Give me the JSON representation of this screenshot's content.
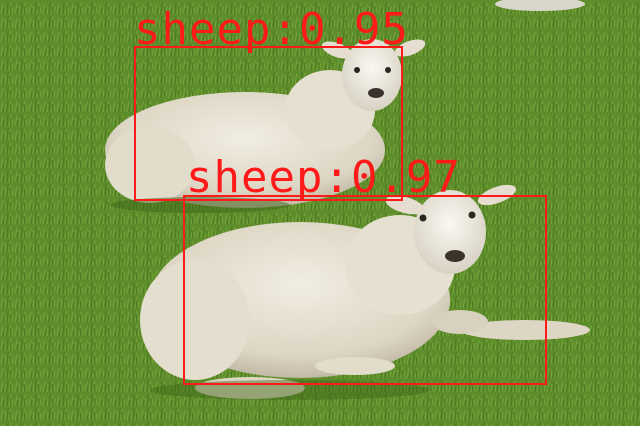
{
  "image": {
    "description_colors": {
      "grass": "#6b9a35",
      "grass_dark": "#4e7a22",
      "wool": "#e9e4d6",
      "wool_shadow": "#cfc7b3",
      "face": "#f3efe6"
    }
  },
  "detections": [
    {
      "class": "sheep",
      "score": "0.95",
      "label": "sheep:0.95",
      "box_color": "#ff1a1a"
    },
    {
      "class": "sheep",
      "score": "0.97",
      "label": "sheep:0.97",
      "box_color": "#ff1a1a"
    }
  ]
}
